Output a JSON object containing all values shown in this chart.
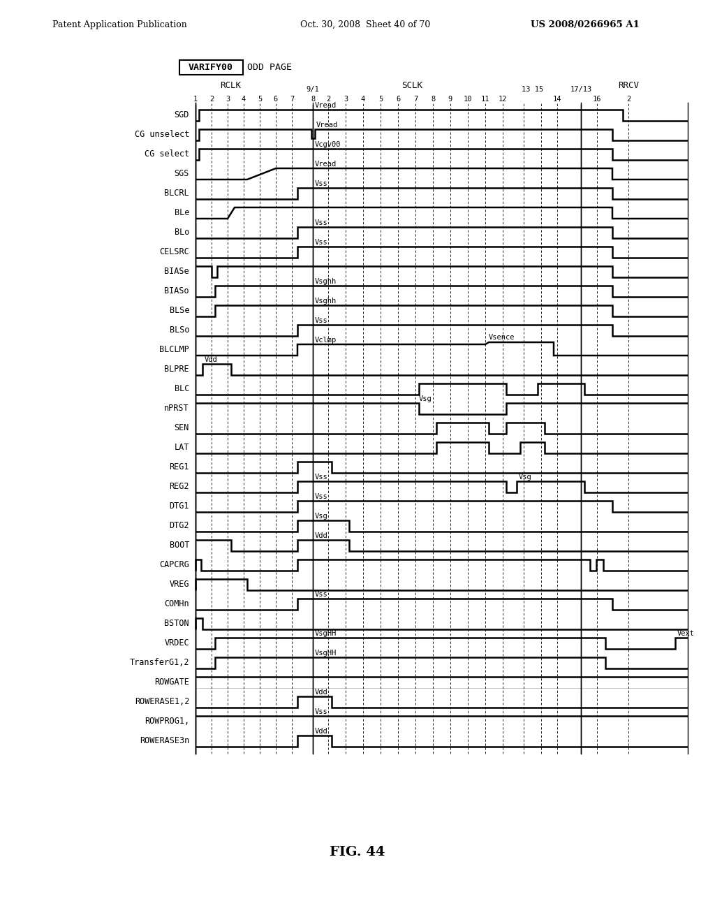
{
  "signals": [
    "SGD",
    "CG unselect",
    "CG select",
    "SGS",
    "BLCRL",
    "BLe",
    "BLo",
    "CELSRC",
    "BIASe",
    "BIASo",
    "BLSe",
    "BLSo",
    "BLCLMP",
    "BLPRE",
    "BLC",
    "nPRST",
    "SEN",
    "LAT",
    "REG1",
    "REG2",
    "DTG1",
    "DTG2",
    "BOOT",
    "CAPCRG",
    "VREG",
    "COMHn",
    "BSTON",
    "VRDEC",
    "TransferG1,2",
    "ROWGATE",
    "ROWERASE1,2",
    "ROWPROG1,",
    "ROWERASE3n"
  ]
}
